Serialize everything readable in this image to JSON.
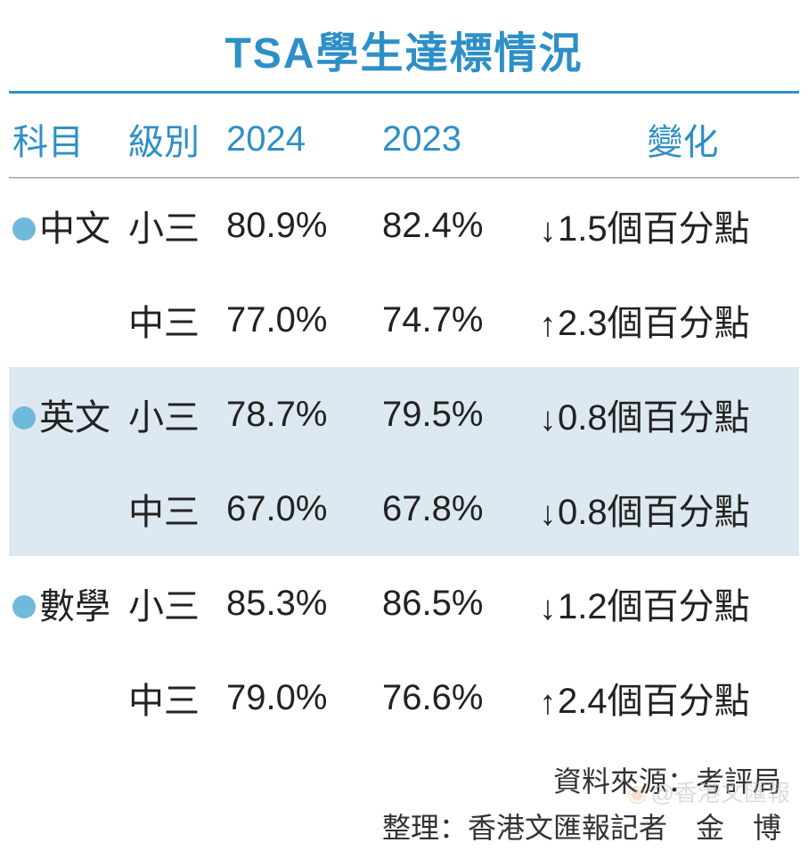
{
  "title": "TSA學生達標情況",
  "colors": {
    "title": "#2e8fc7",
    "header_text": "#2e8fc7",
    "body_text": "#222222",
    "bullet": "#6fb9dc",
    "shade_bg": "#dde9f0",
    "rule": "#2e8fc7",
    "header_rule": "#888888",
    "background": "#ffffff"
  },
  "typography": {
    "title_fontsize": 48,
    "header_fontsize": 40,
    "cell_fontsize": 40,
    "footer_fontsize": 32
  },
  "columns": [
    {
      "key": "subject",
      "label": "科目"
    },
    {
      "key": "level",
      "label": "級別"
    },
    {
      "key": "y2024",
      "label": "2024"
    },
    {
      "key": "y2023",
      "label": "2023"
    },
    {
      "key": "change",
      "label": "變化"
    }
  ],
  "rows": [
    {
      "subject": "中文",
      "show_bullet": true,
      "level": "小三",
      "y2024": "80.9%",
      "y2023": "82.4%",
      "direction": "down",
      "change": "1.5個百分點",
      "shaded": false
    },
    {
      "subject": "",
      "show_bullet": false,
      "level": "中三",
      "y2024": "77.0%",
      "y2023": "74.7%",
      "direction": "up",
      "change": "2.3個百分點",
      "shaded": false
    },
    {
      "subject": "英文",
      "show_bullet": true,
      "level": "小三",
      "y2024": "78.7%",
      "y2023": "79.5%",
      "direction": "down",
      "change": "0.8個百分點",
      "shaded": true
    },
    {
      "subject": "",
      "show_bullet": false,
      "level": "中三",
      "y2024": "67.0%",
      "y2023": "67.8%",
      "direction": "down",
      "change": "0.8個百分點",
      "shaded": true
    },
    {
      "subject": "數學",
      "show_bullet": true,
      "level": "小三",
      "y2024": "85.3%",
      "y2023": "86.5%",
      "direction": "down",
      "change": "1.2個百分點",
      "shaded": false
    },
    {
      "subject": "",
      "show_bullet": false,
      "level": "中三",
      "y2024": "79.0%",
      "y2023": "76.6%",
      "direction": "up",
      "change": "2.4個百分點",
      "shaded": false
    }
  ],
  "arrows": {
    "up": "↑",
    "down": "↓"
  },
  "footer": {
    "source": "資料來源：考評局",
    "author": "整理：香港文匯報記者　金　博"
  },
  "watermark": "@香港文匯報"
}
